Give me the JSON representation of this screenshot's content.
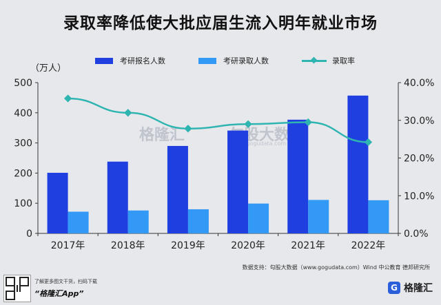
{
  "title": "录取率降低使大批应届生流入明年就业市场",
  "y_unit": "（万人）",
  "legend": {
    "applicants": "考研报名人数",
    "admitted": "考研录取人数",
    "rate": "录取率"
  },
  "colors": {
    "applicants": "#1f3fe0",
    "admitted": "#3399f7",
    "rate": "#2fb5b1"
  },
  "chart_data": {
    "type": "bar",
    "categories": [
      "2017年",
      "2018年",
      "2019年",
      "2020年",
      "2021年",
      "2022年"
    ],
    "series": [
      {
        "name": "考研报名人数",
        "type": "bar",
        "axis": "left",
        "values": [
          201,
          238,
          290,
          341,
          377,
          457
        ]
      },
      {
        "name": "考研录取人数",
        "type": "bar",
        "axis": "left",
        "values": [
          72,
          76,
          80,
          99,
          111,
          110
        ]
      },
      {
        "name": "录取率",
        "type": "line",
        "axis": "right",
        "values": [
          35.8,
          32.0,
          27.8,
          29.0,
          29.5,
          24.2
        ]
      }
    ],
    "y_left": {
      "min": 0,
      "max": 500,
      "ticks": [
        0,
        100,
        200,
        300,
        400,
        500
      ]
    },
    "y_right": {
      "min": 0,
      "max": 40,
      "ticks": [
        "0.0%",
        "10.0%",
        "20.0%",
        "30.0%",
        "40.0%"
      ]
    },
    "grid": false,
    "legend_position": "top"
  },
  "watermark": {
    "brand": "格隆汇",
    "brand2": "勾股大数",
    "url": "www.gogudata.com"
  },
  "source": "数据支持：勾股大数据（www.gogudata.com）Wind 中公教育 德邦研究所",
  "footer": {
    "promo": "了解更多图文干货，扫码下载",
    "app": "“格隆汇App”",
    "logo": "格隆汇"
  }
}
